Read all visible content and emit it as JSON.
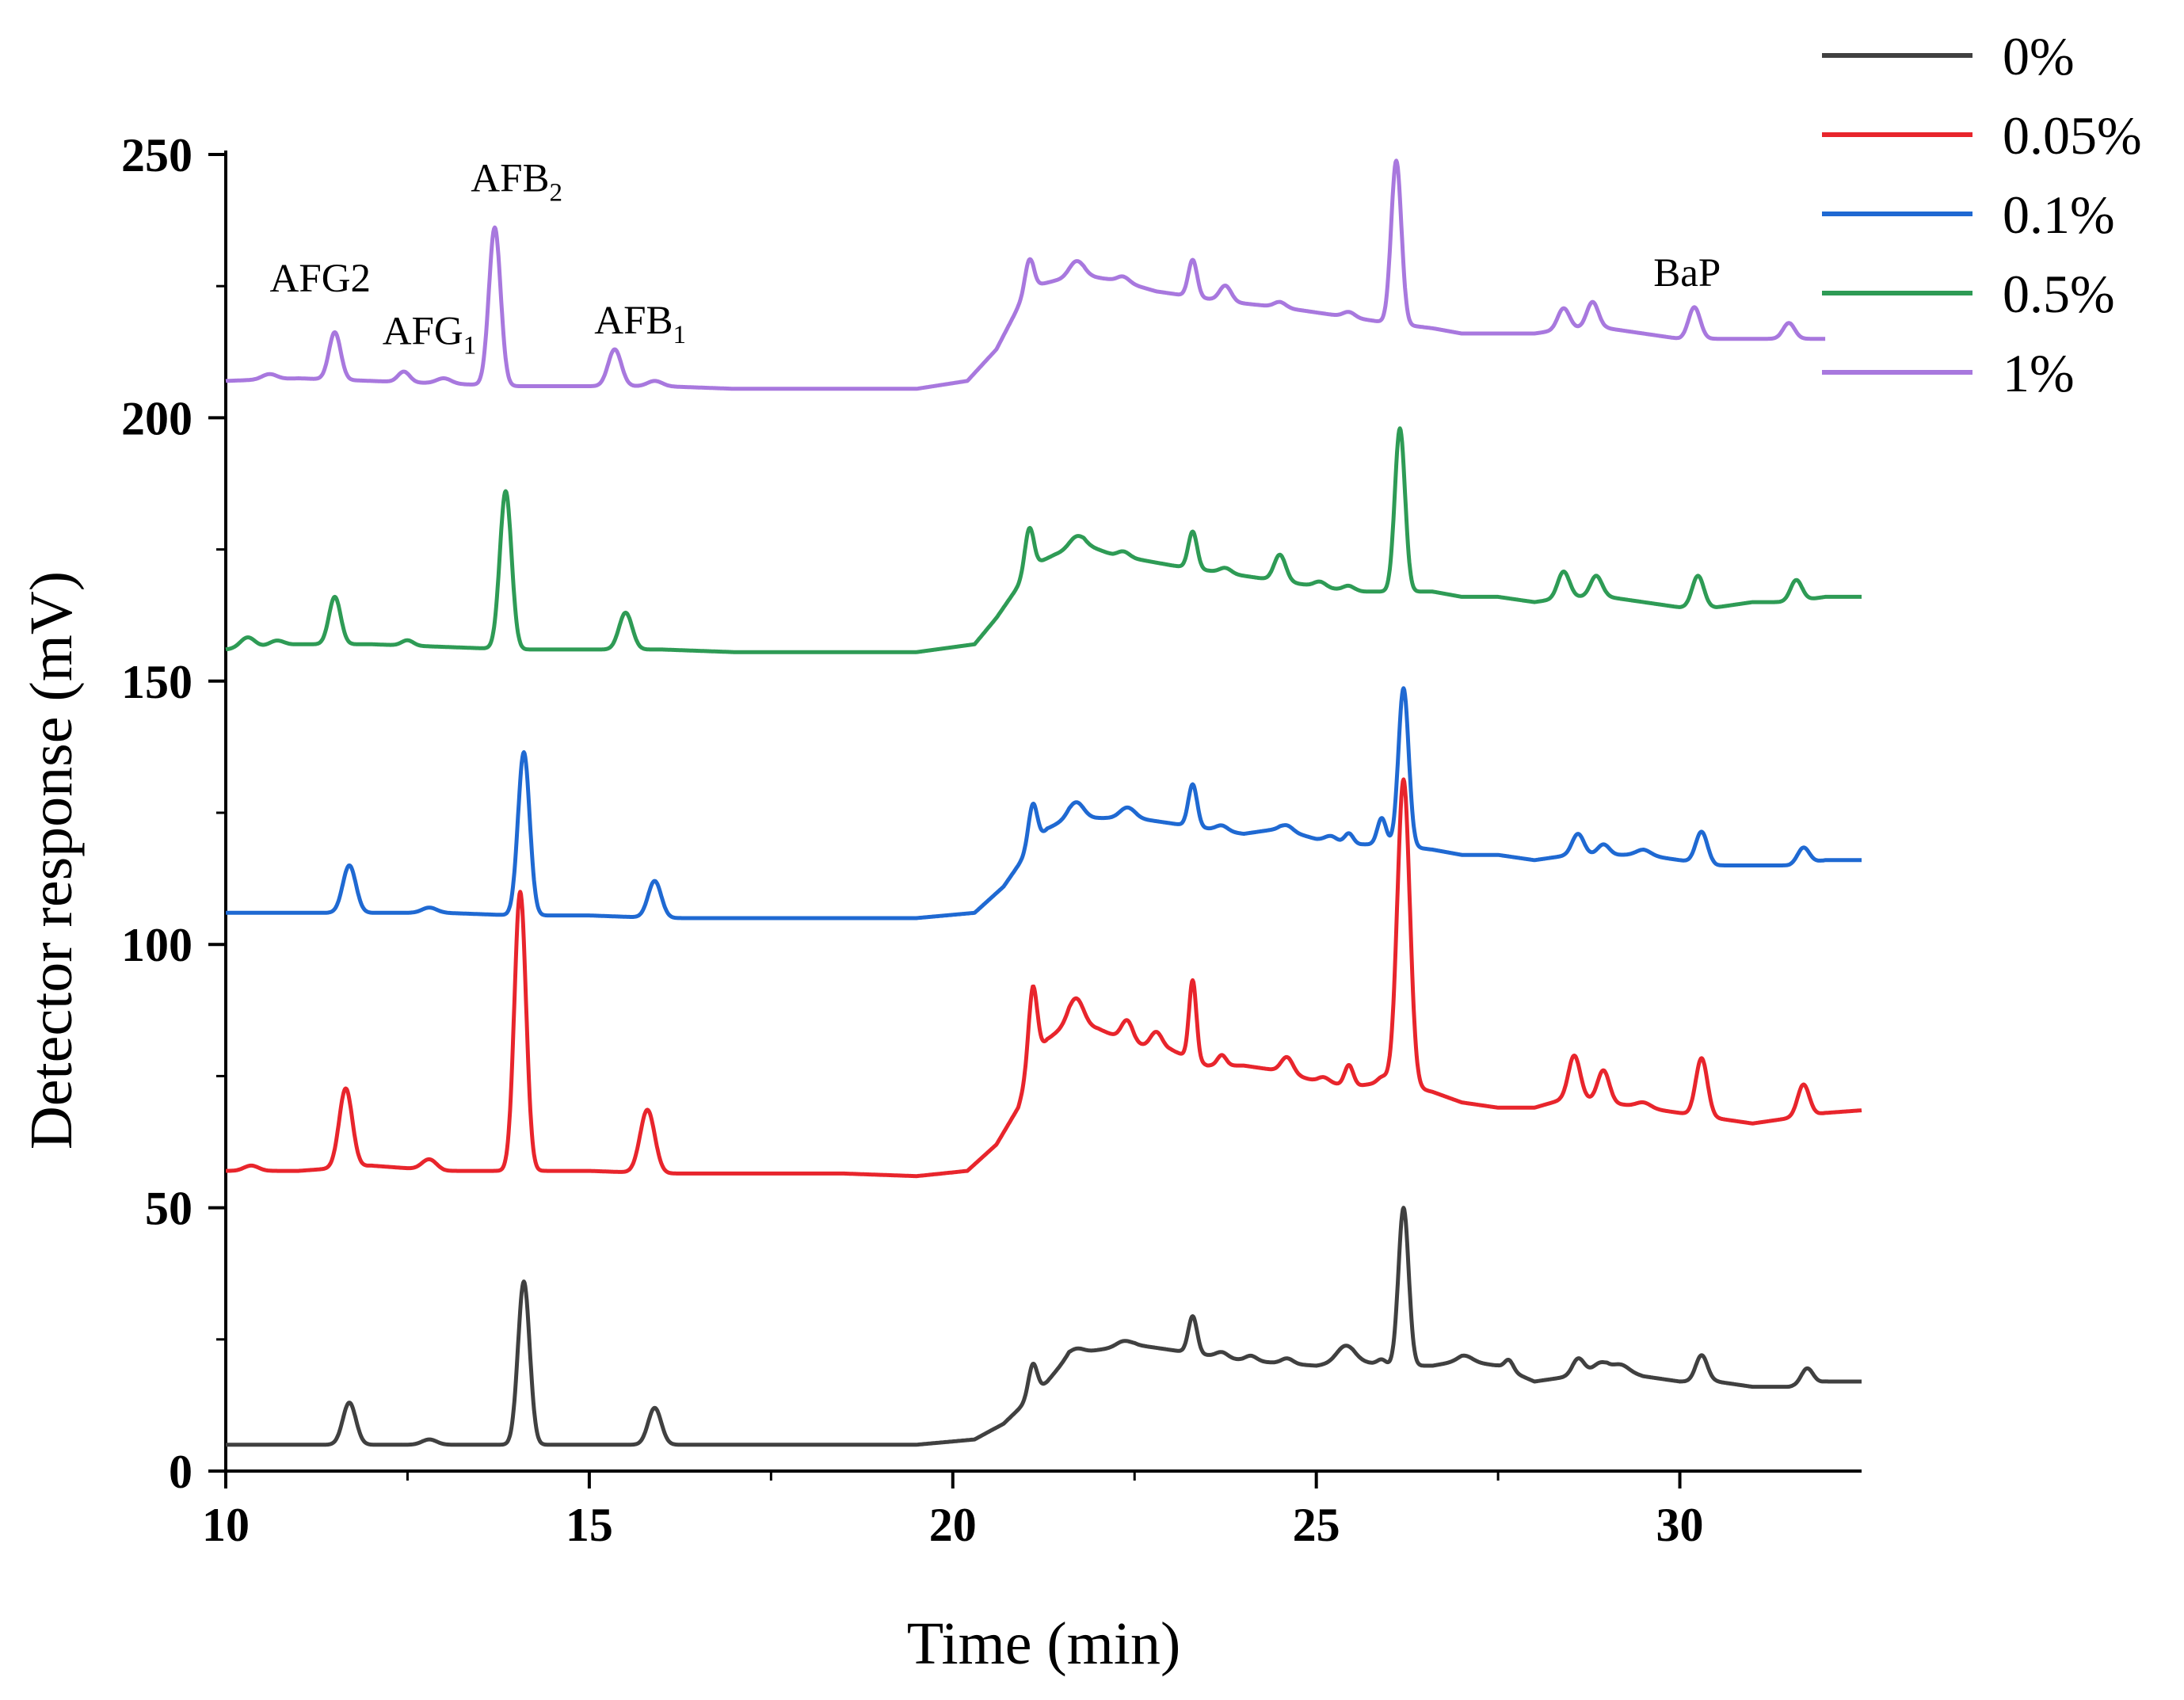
{
  "chart_data": {
    "type": "line",
    "title": "",
    "xlabel": "Time (min)",
    "ylabel": "Detector response (mV)",
    "xlim": [
      10,
      32.5
    ],
    "ylim": [
      0,
      250
    ],
    "xticks": [
      10,
      15,
      20,
      25,
      30
    ],
    "yticks": [
      0,
      50,
      100,
      150,
      200,
      250
    ],
    "grid": false,
    "legend_position": "top-right",
    "annotations": [
      {
        "id": "afg2",
        "text": "AFG2",
        "sub": "",
        "x": 11.3,
        "y": 224
      },
      {
        "id": "afg1",
        "text": "AFG",
        "sub": "1",
        "x": 12.8,
        "y": 214
      },
      {
        "id": "afb2",
        "text": "AFB",
        "sub": "2",
        "x": 14.0,
        "y": 243
      },
      {
        "id": "afb1",
        "text": "AFB",
        "sub": "1",
        "x": 15.7,
        "y": 216
      },
      {
        "id": "bap",
        "text": "BaP",
        "sub": "",
        "x": 30.1,
        "y": 225
      }
    ],
    "series": [
      {
        "name": "0%",
        "color": "#404040",
        "baseline": [
          [
            10,
            5
          ],
          [
            11.5,
            5
          ],
          [
            13.5,
            5
          ],
          [
            15,
            5
          ],
          [
            17,
            5
          ],
          [
            19.5,
            5
          ],
          [
            20.3,
            6
          ],
          [
            20.7,
            9
          ],
          [
            21.0,
            13
          ],
          [
            21.3,
            17
          ],
          [
            21.6,
            22
          ],
          [
            22,
            23
          ],
          [
            22.5,
            24
          ],
          [
            23,
            23
          ],
          [
            23.5,
            22
          ],
          [
            24,
            21
          ],
          [
            25,
            20
          ],
          [
            25.5,
            21
          ],
          [
            26,
            20
          ],
          [
            26.6,
            20
          ],
          [
            27,
            21
          ],
          [
            27.5,
            20
          ],
          [
            28,
            17
          ],
          [
            28.5,
            18
          ],
          [
            29,
            20
          ],
          [
            29.5,
            18
          ],
          [
            30,
            17
          ],
          [
            30.5,
            17
          ],
          [
            31,
            16
          ],
          [
            31.5,
            16
          ],
          [
            32,
            17
          ],
          [
            32.5,
            17
          ]
        ],
        "peaks": [
          [
            11.7,
            8,
            0.09
          ],
          [
            12.8,
            1,
            0.1
          ],
          [
            14.1,
            31,
            0.08
          ],
          [
            15.9,
            7,
            0.09
          ],
          [
            21.1,
            6,
            0.06
          ],
          [
            21.7,
            1,
            0.1
          ],
          [
            22.35,
            1,
            0.1
          ],
          [
            23.3,
            7,
            0.06
          ],
          [
            23.7,
            1,
            0.08
          ],
          [
            24.1,
            1,
            0.08
          ],
          [
            24.6,
            1,
            0.08
          ],
          [
            25.4,
            3,
            0.12
          ],
          [
            25.9,
            1,
            0.06
          ],
          [
            26.2,
            30,
            0.07
          ],
          [
            27.05,
            1,
            0.1
          ],
          [
            27.65,
            2,
            0.06
          ],
          [
            28.6,
            3,
            0.08
          ],
          [
            28.9,
            1,
            0.08
          ],
          [
            29.2,
            1,
            0.1
          ],
          [
            30.3,
            5,
            0.08
          ],
          [
            31.75,
            3,
            0.08
          ]
        ]
      },
      {
        "name": "0.05%",
        "color": "#e8252c",
        "baseline": [
          [
            10,
            57
          ],
          [
            11,
            57
          ],
          [
            12,
            58
          ],
          [
            13,
            57
          ],
          [
            14,
            57
          ],
          [
            15,
            57
          ],
          [
            16,
            56.5
          ],
          [
            17,
            56.5
          ],
          [
            18.5,
            56.5
          ],
          [
            19.5,
            56
          ],
          [
            20.2,
            57
          ],
          [
            20.6,
            62
          ],
          [
            20.9,
            69
          ],
          [
            21.1,
            78
          ],
          [
            21.3,
            82
          ],
          [
            21.6,
            85
          ],
          [
            22,
            84
          ],
          [
            22.5,
            81
          ],
          [
            23,
            80
          ],
          [
            23.5,
            77
          ],
          [
            24,
            77
          ],
          [
            24.5,
            76
          ],
          [
            25,
            74
          ],
          [
            25.5,
            73
          ],
          [
            26,
            74
          ],
          [
            26.6,
            72
          ],
          [
            27,
            70
          ],
          [
            27.5,
            69
          ],
          [
            28,
            69
          ],
          [
            28.5,
            71
          ],
          [
            29,
            70
          ],
          [
            29.5,
            69
          ],
          [
            30,
            68
          ],
          [
            30.5,
            67
          ],
          [
            31,
            66
          ],
          [
            31.5,
            67
          ],
          [
            32,
            68
          ],
          [
            32.5,
            68.5
          ]
        ],
        "peaks": [
          [
            10.35,
            1,
            0.1
          ],
          [
            11.65,
            15,
            0.09
          ],
          [
            12.8,
            2,
            0.1
          ],
          [
            14.05,
            53,
            0.08
          ],
          [
            15.8,
            12,
            0.1
          ],
          [
            21.1,
            14,
            0.06
          ],
          [
            21.7,
            5,
            0.1
          ],
          [
            22.4,
            4,
            0.08
          ],
          [
            22.8,
            3,
            0.08
          ],
          [
            23.3,
            15,
            0.05
          ],
          [
            23.7,
            2,
            0.06
          ],
          [
            24.6,
            3,
            0.08
          ],
          [
            25.1,
            1,
            0.08
          ],
          [
            25.45,
            4,
            0.06
          ],
          [
            25.9,
            1,
            0.06
          ],
          [
            26.2,
            58,
            0.085
          ],
          [
            28.55,
            8,
            0.08
          ],
          [
            28.95,
            6,
            0.08
          ],
          [
            29.5,
            1,
            0.1
          ],
          [
            30.3,
            11,
            0.08
          ],
          [
            31.7,
            6,
            0.08
          ]
        ]
      },
      {
        "name": "0.1%",
        "color": "#1f69d2",
        "baseline": [
          [
            10,
            106
          ],
          [
            11,
            106
          ],
          [
            12,
            106
          ],
          [
            13,
            106
          ],
          [
            14,
            105.5
          ],
          [
            15,
            105.5
          ],
          [
            16,
            105
          ],
          [
            17,
            105
          ],
          [
            18,
            105
          ],
          [
            19.5,
            105
          ],
          [
            20.3,
            106
          ],
          [
            20.7,
            111
          ],
          [
            21.0,
            117
          ],
          [
            21.3,
            122
          ],
          [
            21.6,
            124
          ],
          [
            22,
            124
          ],
          [
            22.5,
            124
          ],
          [
            23,
            123
          ],
          [
            23.5,
            122
          ],
          [
            24,
            121
          ],
          [
            24.5,
            122
          ],
          [
            25,
            120
          ],
          [
            25.5,
            119
          ],
          [
            26,
            119
          ],
          [
            26.6,
            118
          ],
          [
            27,
            117
          ],
          [
            27.5,
            117
          ],
          [
            28,
            116
          ],
          [
            28.5,
            117
          ],
          [
            29,
            117
          ],
          [
            29.5,
            117
          ],
          [
            30,
            116
          ],
          [
            30.5,
            115
          ],
          [
            31,
            115
          ],
          [
            31.5,
            115
          ],
          [
            32,
            116
          ],
          [
            32.5,
            116
          ]
        ],
        "peaks": [
          [
            11.7,
            9,
            0.09
          ],
          [
            12.8,
            1,
            0.1
          ],
          [
            14.1,
            31,
            0.08
          ],
          [
            15.9,
            7,
            0.09
          ],
          [
            21.1,
            8,
            0.06
          ],
          [
            21.7,
            3,
            0.1
          ],
          [
            22.4,
            2,
            0.1
          ],
          [
            23.3,
            8,
            0.06
          ],
          [
            23.7,
            1,
            0.08
          ],
          [
            24.6,
            1,
            0.08
          ],
          [
            25.2,
            1,
            0.08
          ],
          [
            25.45,
            2,
            0.06
          ],
          [
            25.9,
            5,
            0.06
          ],
          [
            26.2,
            30,
            0.07
          ],
          [
            28.6,
            4,
            0.08
          ],
          [
            28.95,
            2,
            0.08
          ],
          [
            29.5,
            1,
            0.1
          ],
          [
            30.3,
            6,
            0.08
          ],
          [
            31.7,
            3,
            0.08
          ]
        ]
      },
      {
        "name": "0.5%",
        "color": "#2e9b55",
        "baseline": [
          [
            10,
            156
          ],
          [
            11,
            157
          ],
          [
            12,
            157
          ],
          [
            13,
            156.5
          ],
          [
            14,
            156
          ],
          [
            15,
            156
          ],
          [
            16,
            156
          ],
          [
            17,
            155.5
          ],
          [
            18,
            155.5
          ],
          [
            19.5,
            155.5
          ],
          [
            20.3,
            157
          ],
          [
            20.6,
            162
          ],
          [
            20.9,
            168
          ],
          [
            21.1,
            172
          ],
          [
            21.4,
            174
          ],
          [
            21.8,
            176
          ],
          [
            22.2,
            174
          ],
          [
            22.6,
            173
          ],
          [
            23,
            172
          ],
          [
            23.5,
            171
          ],
          [
            24,
            170
          ],
          [
            24.5,
            169
          ],
          [
            25,
            168
          ],
          [
            25.5,
            167
          ],
          [
            26,
            167
          ],
          [
            26.6,
            167
          ],
          [
            27,
            166
          ],
          [
            27.5,
            166
          ],
          [
            28,
            165
          ],
          [
            28.5,
            166
          ],
          [
            29,
            166
          ],
          [
            29.5,
            165
          ],
          [
            30,
            164
          ],
          [
            30.5,
            164
          ],
          [
            31,
            165
          ],
          [
            31.5,
            165
          ],
          [
            32,
            166
          ],
          [
            32.5,
            166
          ]
        ],
        "peaks": [
          [
            10.3,
            2,
            0.1
          ],
          [
            10.7,
            1,
            0.1
          ],
          [
            11.5,
            9,
            0.08
          ],
          [
            12.5,
            1,
            0.08
          ],
          [
            13.85,
            30,
            0.08
          ],
          [
            15.5,
            7,
            0.09
          ],
          [
            21.05,
            8,
            0.06
          ],
          [
            21.7,
            2,
            0.1
          ],
          [
            22.35,
            1,
            0.08
          ],
          [
            23.3,
            7,
            0.06
          ],
          [
            23.75,
            1,
            0.08
          ],
          [
            24.5,
            5,
            0.08
          ],
          [
            25.05,
            1,
            0.08
          ],
          [
            25.45,
            1,
            0.08
          ],
          [
            26.15,
            31,
            0.07
          ],
          [
            28.4,
            5,
            0.08
          ],
          [
            28.85,
            4,
            0.08
          ],
          [
            30.25,
            6,
            0.08
          ],
          [
            31.6,
            4,
            0.08
          ]
        ]
      },
      {
        "name": "1%",
        "color": "#a878de",
        "baseline": [
          [
            10,
            207
          ],
          [
            11,
            207.5
          ],
          [
            12,
            207
          ],
          [
            13,
            206.5
          ],
          [
            14,
            206
          ],
          [
            15,
            206
          ],
          [
            16,
            206
          ],
          [
            17,
            205.5
          ],
          [
            18,
            205.5
          ],
          [
            19.5,
            205.5
          ],
          [
            20.2,
            207
          ],
          [
            20.6,
            213
          ],
          [
            20.9,
            221
          ],
          [
            21.1,
            225
          ],
          [
            21.4,
            226
          ],
          [
            21.8,
            227
          ],
          [
            22.3,
            226
          ],
          [
            22.8,
            224
          ],
          [
            23.3,
            223
          ],
          [
            23.8,
            222
          ],
          [
            24.5,
            221
          ],
          [
            25,
            220
          ],
          [
            25.5,
            219
          ],
          [
            26,
            218
          ],
          [
            26.6,
            217
          ],
          [
            27,
            216
          ],
          [
            27.5,
            216
          ],
          [
            28,
            216
          ],
          [
            28.5,
            217
          ],
          [
            29,
            217
          ],
          [
            29.5,
            216
          ],
          [
            30,
            215
          ],
          [
            30.5,
            215
          ],
          [
            31,
            215
          ],
          [
            31.5,
            215
          ],
          [
            32,
            215
          ]
        ],
        "peaks": [
          [
            10.6,
            1,
            0.1
          ],
          [
            11.5,
            9,
            0.08
          ],
          [
            12.45,
            2,
            0.08
          ],
          [
            13,
            1,
            0.1
          ],
          [
            13.7,
            30,
            0.08
          ],
          [
            15.35,
            7,
            0.09
          ],
          [
            15.9,
            1,
            0.1
          ],
          [
            21.05,
            6,
            0.06
          ],
          [
            21.7,
            3,
            0.1
          ],
          [
            22.35,
            1,
            0.08
          ],
          [
            23.3,
            7,
            0.06
          ],
          [
            23.75,
            3,
            0.08
          ],
          [
            24.5,
            1,
            0.08
          ],
          [
            25.45,
            1,
            0.08
          ],
          [
            26.1,
            31,
            0.07
          ],
          [
            28.4,
            4,
            0.08
          ],
          [
            28.8,
            5,
            0.08
          ],
          [
            30.2,
            6,
            0.08
          ],
          [
            31.5,
            3,
            0.08
          ]
        ]
      }
    ]
  }
}
